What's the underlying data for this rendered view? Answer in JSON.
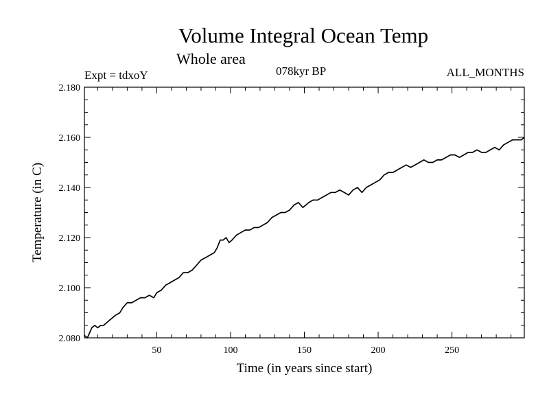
{
  "chart_data": {
    "type": "line",
    "title": "Volume Integral Ocean Temp",
    "subtitle": "Whole area",
    "annotations": {
      "left": "Expt = tdxoY",
      "center": "078kyr BP",
      "right": "ALL_MONTHS"
    },
    "xlabel": "Time (in years since start)",
    "ylabel": "Temperature (in C)",
    "xlim": [
      1,
      299
    ],
    "ylim": [
      2.08,
      2.18
    ],
    "xticks": [
      50,
      100,
      150,
      200,
      250
    ],
    "xtick_labels": [
      "50",
      "100",
      "150",
      "200",
      "250"
    ],
    "yticks": [
      2.08,
      2.1,
      2.12,
      2.14,
      2.16,
      2.18
    ],
    "ytick_labels": [
      "2.080",
      "2.100",
      "2.120",
      "2.140",
      "2.160",
      "2.180"
    ],
    "grid": false,
    "series": [
      {
        "color": "#000000",
        "x": [
          1,
          3,
          6,
          8,
          10,
          12,
          14,
          16,
          18,
          20,
          22,
          25,
          27,
          30,
          33,
          36,
          39,
          42,
          45,
          48,
          50,
          53,
          56,
          59,
          62,
          65,
          68,
          71,
          74,
          77,
          80,
          83,
          86,
          89,
          91,
          93,
          95,
          97,
          99,
          101,
          104,
          107,
          110,
          113,
          116,
          119,
          122,
          125,
          128,
          131,
          134,
          137,
          140,
          143,
          146,
          149,
          151,
          153,
          156,
          159,
          162,
          165,
          168,
          171,
          174,
          177,
          180,
          183,
          186,
          189,
          192,
          195,
          198,
          201,
          204,
          207,
          210,
          213,
          216,
          219,
          222,
          225,
          228,
          231,
          234,
          237,
          240,
          243,
          246,
          249,
          252,
          255,
          258,
          261,
          264,
          267,
          270,
          273,
          276,
          279,
          282,
          285,
          288,
          291,
          294,
          297,
          299
        ],
        "values": [
          2.081,
          2.08,
          2.084,
          2.085,
          2.084,
          2.085,
          2.085,
          2.086,
          2.087,
          2.088,
          2.089,
          2.09,
          2.092,
          2.094,
          2.094,
          2.095,
          2.096,
          2.096,
          2.097,
          2.096,
          2.098,
          2.099,
          2.101,
          2.102,
          2.103,
          2.104,
          2.106,
          2.106,
          2.107,
          2.109,
          2.111,
          2.112,
          2.113,
          2.114,
          2.116,
          2.119,
          2.119,
          2.12,
          2.118,
          2.119,
          2.121,
          2.122,
          2.123,
          2.123,
          2.124,
          2.124,
          2.125,
          2.126,
          2.128,
          2.129,
          2.13,
          2.13,
          2.131,
          2.133,
          2.134,
          2.132,
          2.133,
          2.134,
          2.135,
          2.135,
          2.136,
          2.137,
          2.138,
          2.138,
          2.139,
          2.138,
          2.137,
          2.139,
          2.14,
          2.138,
          2.14,
          2.141,
          2.142,
          2.143,
          2.145,
          2.146,
          2.146,
          2.147,
          2.148,
          2.149,
          2.148,
          2.149,
          2.15,
          2.151,
          2.15,
          2.15,
          2.151,
          2.151,
          2.152,
          2.153,
          2.153,
          2.152,
          2.153,
          2.154,
          2.154,
          2.155,
          2.154,
          2.154,
          2.155,
          2.156,
          2.155,
          2.157,
          2.158,
          2.159,
          2.159,
          2.159,
          2.16
        ]
      }
    ]
  }
}
